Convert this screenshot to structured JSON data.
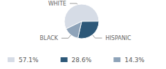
{
  "chart_data": {
    "type": "pie",
    "categories": [
      "WHITE",
      "HISPANIC",
      "BLACK"
    ],
    "values": [
      57.1,
      28.6,
      14.3
    ],
    "value_labels": [
      "57.1%",
      "28.6%",
      "14.3%"
    ],
    "colors": [
      "#d6dce6",
      "#2d5878",
      "#8ea3b9"
    ],
    "legend": "bottom"
  }
}
